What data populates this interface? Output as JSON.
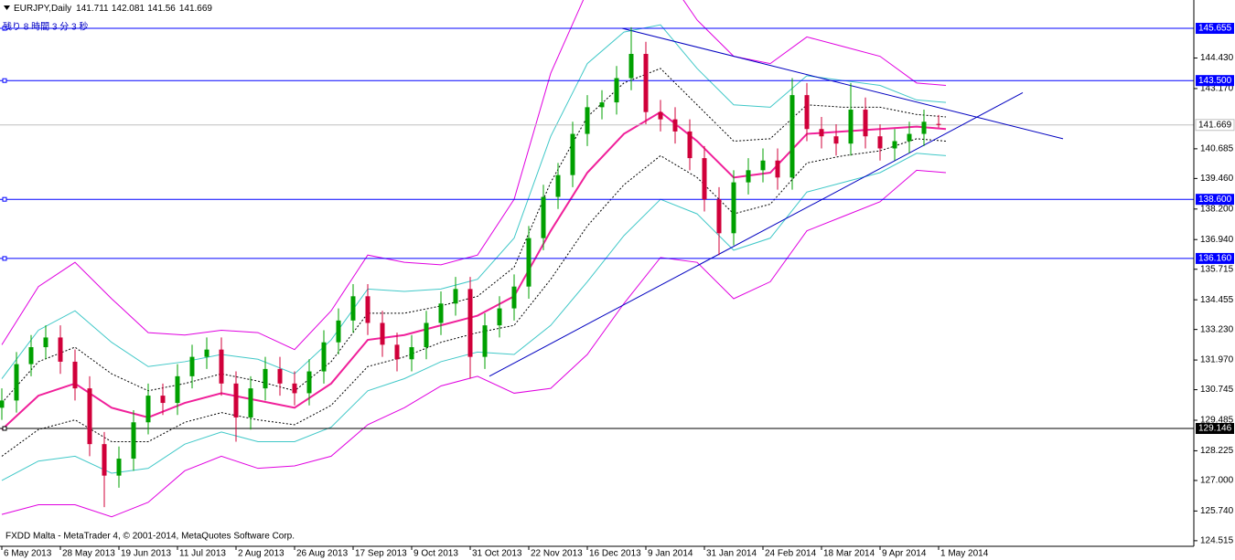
{
  "chart_data": {
    "type": "candlestick",
    "symbol": "EURJPY,Daily",
    "countdown": "残り 8 時間 3 分 3 秒",
    "footer": "FXDD Malta - MetaTrader 4, © 2001-2014, MetaQuotes Software Corp.",
    "up_color": "#00a000",
    "down_color": "#d0003a",
    "xlim": [
      -0.5,
      325.75
    ],
    "ylim": [
      124.284,
      146.824
    ],
    "xticks": [
      {
        "value": 0,
        "label": "6 May 2013"
      },
      {
        "value": 16,
        "label": "28 May 2013"
      },
      {
        "value": 32,
        "label": "19 Jun 2013"
      },
      {
        "value": 48,
        "label": "11 Jul 2013"
      },
      {
        "value": 64,
        "label": "2 Aug 2013"
      },
      {
        "value": 80,
        "label": "26 Aug 2013"
      },
      {
        "value": 96,
        "label": "17 Sep 2013"
      },
      {
        "value": 112,
        "label": "9 Oct 2013"
      },
      {
        "value": 128,
        "label": "31 Oct 2013"
      },
      {
        "value": 144,
        "label": "22 Nov 2013"
      },
      {
        "value": 160,
        "label": "16 Dec 2013"
      },
      {
        "value": 176,
        "label": "9 Jan 2014"
      },
      {
        "value": 192,
        "label": "31 Jan 2014"
      },
      {
        "value": 208,
        "label": "24 Feb 2014"
      },
      {
        "value": 224,
        "label": "18 Mar 2014"
      },
      {
        "value": 240,
        "label": "9 Apr 2014"
      },
      {
        "value": 256,
        "label": "1 May 2014"
      }
    ],
    "yticks": [
      {
        "value": 144.43,
        "label": "144.430"
      },
      {
        "value": 143.17,
        "label": "143.170"
      },
      140.685,
      {
        "value": 139.46,
        "label": "139.460"
      },
      {
        "value": 138.2,
        "label": "138.200"
      },
      {
        "value": 136.94,
        "label": "136.940"
      },
      135.715,
      134.455,
      {
        "value": 133.23,
        "label": "133.230"
      },
      {
        "value": 131.97,
        "label": "131.970"
      },
      130.745,
      129.485,
      128.225,
      {
        "value": 127.0,
        "label": "127.000"
      },
      {
        "value": 125.74,
        "label": "125.740"
      },
      124.515
    ],
    "x": [
      0,
      4,
      8,
      12,
      16,
      20,
      24,
      28,
      32,
      36,
      40,
      44,
      48,
      52,
      56,
      60,
      64,
      68,
      72,
      76,
      80,
      84,
      88,
      92,
      96,
      100,
      104,
      108,
      112,
      116,
      120,
      124,
      128,
      132,
      136,
      140,
      144,
      148,
      152,
      156,
      160,
      164,
      168,
      172,
      176,
      180,
      184,
      188,
      192,
      196,
      200,
      204,
      208,
      212,
      216,
      220,
      224,
      228,
      232,
      236,
      240,
      244,
      248,
      252,
      256
    ],
    "candles": [
      [
        130.0,
        130.8,
        129.5,
        130.3
      ],
      [
        130.3,
        132.3,
        129.8,
        131.8
      ],
      [
        131.8,
        133.0,
        131.3,
        132.5
      ],
      [
        132.5,
        133.4,
        132.0,
        132.9
      ],
      [
        132.9,
        133.4,
        131.4,
        131.9
      ],
      [
        131.9,
        132.4,
        130.3,
        130.8
      ],
      [
        130.8,
        131.3,
        128.0,
        128.5
      ],
      [
        128.5,
        129.0,
        125.9,
        127.2
      ],
      [
        127.2,
        128.4,
        126.7,
        127.9
      ],
      [
        127.9,
        129.9,
        127.4,
        129.4
      ],
      [
        129.4,
        131.0,
        128.9,
        130.5
      ],
      [
        130.5,
        131.0,
        129.7,
        130.2
      ],
      [
        130.2,
        131.8,
        129.7,
        131.3
      ],
      [
        131.3,
        132.6,
        130.8,
        132.1
      ],
      [
        132.1,
        132.9,
        131.6,
        132.4
      ],
      [
        132.4,
        132.9,
        130.5,
        131.0
      ],
      [
        131.0,
        131.5,
        128.6,
        129.6
      ],
      [
        129.6,
        131.3,
        129.1,
        130.8
      ],
      [
        130.8,
        132.1,
        130.3,
        131.6
      ],
      [
        131.6,
        132.1,
        130.5,
        131.0
      ],
      [
        131.0,
        131.5,
        130.1,
        130.6
      ],
      [
        130.6,
        132.0,
        130.1,
        131.5
      ],
      [
        131.5,
        133.2,
        131.0,
        132.7
      ],
      [
        132.7,
        134.1,
        132.2,
        133.6
      ],
      [
        133.6,
        135.1,
        133.1,
        134.6
      ],
      [
        134.6,
        135.1,
        133.0,
        133.5
      ],
      [
        133.5,
        134.0,
        132.1,
        132.6
      ],
      [
        132.6,
        133.1,
        131.5,
        132.0
      ],
      [
        132.0,
        133.0,
        131.5,
        132.5
      ],
      [
        132.5,
        134.0,
        132.0,
        133.5
      ],
      [
        133.5,
        134.8,
        133.0,
        134.3
      ],
      [
        134.3,
        135.4,
        133.8,
        134.9
      ],
      [
        134.9,
        135.4,
        131.2,
        132.1
      ],
      [
        132.1,
        133.9,
        131.6,
        133.4
      ],
      [
        133.4,
        134.6,
        132.9,
        134.1
      ],
      [
        134.1,
        135.5,
        133.6,
        135.0
      ],
      [
        135.0,
        137.5,
        134.5,
        137.0
      ],
      [
        137.0,
        139.2,
        136.5,
        138.7
      ],
      [
        138.7,
        140.1,
        138.2,
        139.6
      ],
      [
        139.6,
        141.8,
        139.1,
        141.3
      ],
      [
        141.3,
        142.9,
        140.8,
        142.4
      ],
      [
        142.4,
        143.1,
        141.9,
        142.6
      ],
      [
        142.6,
        144.1,
        142.1,
        143.6
      ],
      [
        143.6,
        145.7,
        143.1,
        144.6
      ],
      [
        144.6,
        145.1,
        141.7,
        142.2
      ],
      [
        142.2,
        142.7,
        141.4,
        141.9
      ],
      [
        141.9,
        142.4,
        140.9,
        141.4
      ],
      [
        141.4,
        141.9,
        139.8,
        140.3
      ],
      [
        140.3,
        140.8,
        138.1,
        138.6
      ],
      [
        138.6,
        139.1,
        136.3,
        137.2
      ],
      [
        137.2,
        139.8,
        136.7,
        139.3
      ],
      [
        139.3,
        140.3,
        138.8,
        139.8
      ],
      [
        139.8,
        140.7,
        139.3,
        140.2
      ],
      [
        140.2,
        140.7,
        139.0,
        139.5
      ],
      [
        139.5,
        143.6,
        139.0,
        142.9
      ],
      [
        142.9,
        143.4,
        141.0,
        141.5
      ],
      [
        141.5,
        142.0,
        140.7,
        141.2
      ],
      [
        141.2,
        141.7,
        140.4,
        140.9
      ],
      [
        140.9,
        143.4,
        140.4,
        142.3
      ],
      [
        142.3,
        142.8,
        140.7,
        141.2
      ],
      [
        141.2,
        141.7,
        140.2,
        140.7
      ],
      [
        140.7,
        141.5,
        140.2,
        141.0
      ],
      [
        141.0,
        141.8,
        140.5,
        141.3
      ],
      [
        141.3,
        142.3,
        140.8,
        141.8
      ],
      [
        141.711,
        142.081,
        141.56,
        141.669
      ]
    ],
    "overlay_x": [
      0,
      10,
      20,
      30,
      40,
      50,
      60,
      70,
      80,
      90,
      100,
      110,
      120,
      130,
      140,
      150,
      160,
      170,
      180,
      190,
      200,
      210,
      220,
      230,
      240,
      250,
      258
    ],
    "overlays": [
      {
        "color": "#e000e0",
        "width": 1,
        "dash": false,
        "values": [
          132.6,
          135.0,
          136.0,
          134.5,
          133.1,
          133.0,
          133.2,
          133.1,
          132.4,
          134.0,
          136.3,
          136.0,
          135.9,
          136.3,
          138.6,
          143.8,
          147.2,
          148.3,
          148.2,
          146.0,
          144.5,
          144.2,
          145.3,
          144.9,
          144.5,
          143.4,
          143.3
        ]
      },
      {
        "color": "#e000e0",
        "width": 1,
        "dash": false,
        "values": [
          125.6,
          126.0,
          126.0,
          125.5,
          126.1,
          127.4,
          128.0,
          127.5,
          127.6,
          128.0,
          129.3,
          130.0,
          130.9,
          131.3,
          130.6,
          130.8,
          132.2,
          134.3,
          136.2,
          136.0,
          134.5,
          135.2,
          137.3,
          137.9,
          138.5,
          139.8,
          139.7
        ]
      },
      {
        "color": "#40c8c8",
        "width": 1,
        "dash": false,
        "values": [
          131.2,
          133.2,
          134.0,
          132.7,
          131.7,
          131.9,
          132.2,
          132.0,
          131.4,
          132.8,
          134.9,
          134.8,
          134.9,
          135.3,
          137.0,
          141.2,
          144.2,
          145.5,
          145.8,
          144.0,
          142.5,
          142.4,
          143.7,
          143.5,
          143.3,
          142.7,
          142.6
        ]
      },
      {
        "color": "#40c8c8",
        "width": 1,
        "dash": false,
        "values": [
          127.0,
          127.8,
          128.0,
          127.3,
          127.5,
          128.5,
          129.0,
          128.6,
          128.6,
          129.2,
          130.7,
          131.2,
          131.9,
          132.3,
          132.2,
          133.4,
          135.2,
          137.1,
          138.6,
          138.0,
          136.5,
          137.0,
          138.9,
          139.3,
          139.7,
          140.5,
          140.4
        ]
      },
      {
        "color": "#000000",
        "width": 1,
        "dash": true,
        "values": [
          130.2,
          131.9,
          132.5,
          131.4,
          130.7,
          131.0,
          131.4,
          131.1,
          130.7,
          131.9,
          133.9,
          133.9,
          134.2,
          134.6,
          135.8,
          139.3,
          142.0,
          143.4,
          144.0,
          142.5,
          141.0,
          141.1,
          142.5,
          142.4,
          142.4,
          142.1,
          142.0
        ]
      },
      {
        "color": "#000000",
        "width": 1,
        "dash": true,
        "values": [
          128.0,
          129.1,
          129.5,
          128.6,
          128.6,
          129.4,
          129.8,
          129.5,
          129.3,
          130.1,
          131.7,
          132.1,
          132.7,
          133.1,
          133.4,
          135.3,
          137.5,
          139.2,
          140.4,
          139.5,
          138.0,
          138.4,
          140.1,
          140.4,
          140.6,
          141.1,
          141.0
        ]
      },
      {
        "color": "#f0209a",
        "width": 2,
        "dash": false,
        "values": [
          129.1,
          130.5,
          131.0,
          130.0,
          129.6,
          130.2,
          130.6,
          130.3,
          130.0,
          131.0,
          132.8,
          133.0,
          133.4,
          133.8,
          134.6,
          137.3,
          139.7,
          141.3,
          142.2,
          141.0,
          139.5,
          139.7,
          141.3,
          141.4,
          141.5,
          141.6,
          141.5
        ]
      }
    ],
    "trendlines": [
      {
        "color": "#0000c0",
        "x": [
          169.5,
          290
        ],
        "values": [
          145.655,
          141.1
        ]
      },
      {
        "color": "#0000c0",
        "x": [
          133.25,
          279
        ],
        "values": [
          131.3,
          143.0
        ]
      }
    ],
    "levels": [
      {
        "value": 145.655,
        "color": "#0000ff"
      },
      {
        "value": 143.5,
        "label": "143.500",
        "color": "#0000ff"
      },
      {
        "value": 138.6,
        "label": "138.600",
        "color": "#0000ff"
      },
      {
        "value": 136.16,
        "label": "136.160",
        "color": "#0000ff"
      },
      {
        "value": 129.146,
        "color": "#000000"
      }
    ]
  }
}
